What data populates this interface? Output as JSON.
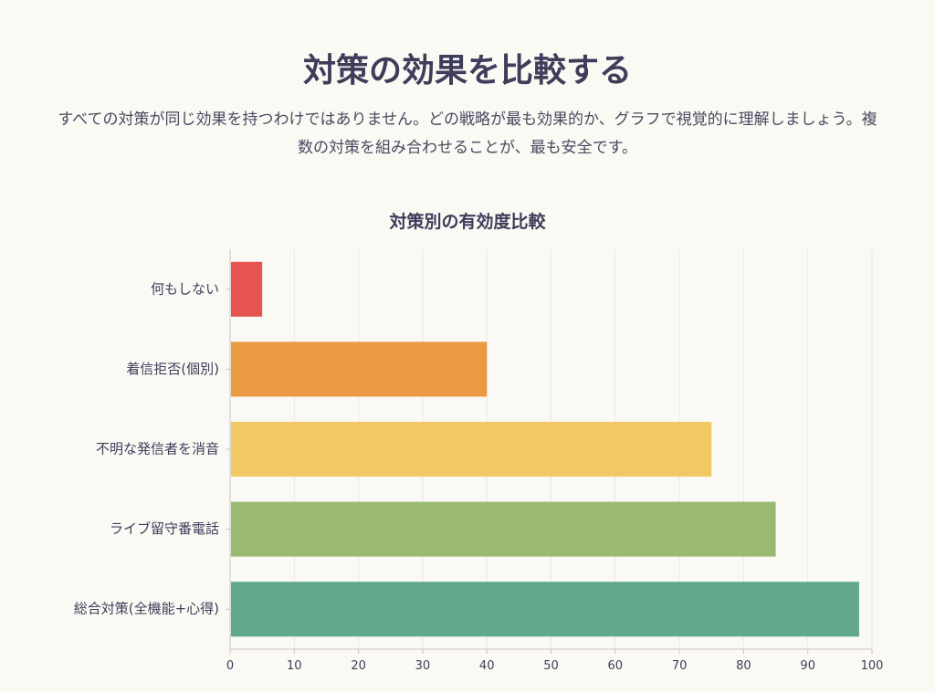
{
  "header": {
    "title": "対策の効果を比較する",
    "subtitle": "すべての対策が同じ効果を持つわけではありません。どの戦略が最も効果的か、グラフで視覚的に理解しましょう。複数の対策を組み合わせることが、最も安全です。"
  },
  "colors": {
    "background": "#fbf9f4",
    "grid": "#ebe8e1",
    "axis": "#c8c5bd",
    "text": "#3e3d5a"
  },
  "chart_data": {
    "type": "bar",
    "orientation": "horizontal",
    "title": "対策別の有効度比較",
    "xlabel": "",
    "ylabel": "",
    "categories": [
      "何もしない",
      "着信拒否(個別)",
      "不明な発信者を消音",
      "ライブ留守番電話",
      "総合対策(全機能+心得)"
    ],
    "values": [
      5,
      40,
      75,
      85,
      98
    ],
    "bar_colors": [
      "#e5544f",
      "#ea9a42",
      "#f0c865",
      "#9aba73",
      "#61a88d"
    ],
    "xlim": [
      0,
      100
    ],
    "xticks": [
      0,
      10,
      20,
      30,
      40,
      50,
      60,
      70,
      80,
      90,
      100
    ],
    "grid": true,
    "legend": "none"
  }
}
